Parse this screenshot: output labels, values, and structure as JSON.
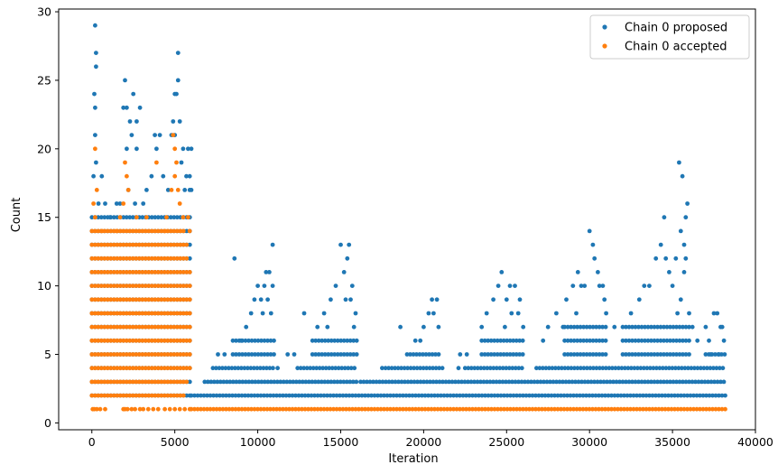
{
  "chart_data": {
    "type": "scatter",
    "xlabel": "Iteration",
    "ylabel": "Count",
    "xlim": [
      -2000,
      40000
    ],
    "ylim": [
      -0.5,
      30.2
    ],
    "xticks": [
      0,
      5000,
      10000,
      15000,
      20000,
      25000,
      30000,
      35000,
      40000
    ],
    "yticks": [
      0,
      5,
      10,
      15,
      20,
      25,
      30
    ],
    "grid": false,
    "legend": {
      "placement": "top-right"
    },
    "series": [
      {
        "name": "Chain 0 proposed",
        "color": "#1f77b4",
        "bands": [
          {
            "x0": 0,
            "x1": 6000,
            "ys": [
              2,
              3,
              4,
              5,
              6,
              7,
              8,
              9,
              10,
              11,
              12,
              13,
              14,
              15
            ]
          },
          {
            "x0": 6000,
            "x1": 38200,
            "ys": [
              2
            ]
          },
          {
            "x0": 6800,
            "x1": 16100,
            "ys": [
              3
            ]
          },
          {
            "x0": 7300,
            "x1": 11000,
            "ys": [
              4
            ]
          },
          {
            "x0": 12400,
            "x1": 16000,
            "ys": [
              4
            ]
          },
          {
            "x0": 16200,
            "x1": 38200,
            "ys": [
              3
            ]
          },
          {
            "x0": 17700,
            "x1": 21200,
            "ys": [
              4
            ]
          },
          {
            "x0": 22500,
            "x1": 26000,
            "ys": [
              4
            ]
          },
          {
            "x0": 26800,
            "x1": 38200,
            "ys": [
              4
            ]
          },
          {
            "x0": 8500,
            "x1": 11000,
            "ys": [
              5,
              6
            ]
          },
          {
            "x0": 13300,
            "x1": 16000,
            "ys": [
              5,
              6
            ]
          },
          {
            "x0": 19000,
            "x1": 21000,
            "ys": [
              5
            ]
          },
          {
            "x0": 23500,
            "x1": 26000,
            "ys": [
              5,
              6
            ]
          },
          {
            "x0": 28500,
            "x1": 31000,
            "ys": [
              5,
              6,
              7
            ]
          },
          {
            "x0": 32000,
            "x1": 36000,
            "ys": [
              5,
              6,
              7
            ]
          },
          {
            "x0": 37000,
            "x1": 38200,
            "ys": [
              5
            ]
          }
        ],
        "points": [
          [
            200,
            29
          ],
          [
            250,
            27
          ],
          [
            250,
            26
          ],
          [
            150,
            24
          ],
          [
            200,
            23
          ],
          [
            200,
            21
          ],
          [
            250,
            19
          ],
          [
            100,
            18
          ],
          [
            600,
            18
          ],
          [
            400,
            16
          ],
          [
            800,
            16
          ],
          [
            2000,
            25
          ],
          [
            1900,
            23
          ],
          [
            2100,
            23
          ],
          [
            2500,
            24
          ],
          [
            2700,
            22
          ],
          [
            2900,
            23
          ],
          [
            2300,
            22
          ],
          [
            2400,
            21
          ],
          [
            2100,
            20
          ],
          [
            2700,
            20
          ],
          [
            3800,
            21
          ],
          [
            4100,
            21
          ],
          [
            3900,
            20
          ],
          [
            4300,
            18
          ],
          [
            3600,
            18
          ],
          [
            4800,
            21
          ],
          [
            5000,
            21
          ],
          [
            5100,
            24
          ],
          [
            5200,
            25
          ],
          [
            5200,
            27
          ],
          [
            5000,
            24
          ],
          [
            5300,
            22
          ],
          [
            4900,
            22
          ],
          [
            5500,
            20
          ],
          [
            5800,
            20
          ],
          [
            6000,
            20
          ],
          [
            5400,
            19
          ],
          [
            5700,
            18
          ],
          [
            5900,
            18
          ],
          [
            5600,
            17
          ],
          [
            1700,
            16
          ],
          [
            3100,
            16
          ],
          [
            3300,
            17
          ],
          [
            2200,
            17
          ],
          [
            2600,
            16
          ],
          [
            4600,
            17
          ],
          [
            5900,
            17
          ],
          [
            6000,
            17
          ],
          [
            1100,
            15
          ],
          [
            1500,
            16
          ],
          [
            8600,
            12
          ],
          [
            9300,
            7
          ],
          [
            9600,
            8
          ],
          [
            9800,
            9
          ],
          [
            10000,
            10
          ],
          [
            10200,
            9
          ],
          [
            10400,
            10
          ],
          [
            10500,
            11
          ],
          [
            10700,
            11
          ],
          [
            10900,
            13
          ],
          [
            10300,
            8
          ],
          [
            10600,
            9
          ],
          [
            10800,
            8
          ],
          [
            10900,
            10
          ],
          [
            9000,
            6
          ],
          [
            7600,
            5
          ],
          [
            8000,
            5
          ],
          [
            11200,
            4
          ],
          [
            12800,
            8
          ],
          [
            13600,
            7
          ],
          [
            14000,
            8
          ],
          [
            14400,
            9
          ],
          [
            14700,
            10
          ],
          [
            15000,
            13
          ],
          [
            15200,
            11
          ],
          [
            15400,
            12
          ],
          [
            15500,
            13
          ],
          [
            15700,
            10
          ],
          [
            15300,
            9
          ],
          [
            15600,
            9
          ],
          [
            15900,
            8
          ],
          [
            15800,
            7
          ],
          [
            14200,
            7
          ],
          [
            12200,
            5
          ],
          [
            11800,
            5
          ],
          [
            18600,
            7
          ],
          [
            19500,
            6
          ],
          [
            20000,
            7
          ],
          [
            20300,
            8
          ],
          [
            20500,
            9
          ],
          [
            20800,
            9
          ],
          [
            20600,
            8
          ],
          [
            20900,
            7
          ],
          [
            19800,
            6
          ],
          [
            17500,
            4
          ],
          [
            23500,
            7
          ],
          [
            23800,
            8
          ],
          [
            24200,
            9
          ],
          [
            24500,
            10
          ],
          [
            24700,
            11
          ],
          [
            25000,
            9
          ],
          [
            25200,
            10
          ],
          [
            25500,
            10
          ],
          [
            25800,
            9
          ],
          [
            25700,
            8
          ],
          [
            25300,
            8
          ],
          [
            24900,
            7
          ],
          [
            26000,
            7
          ],
          [
            22100,
            4
          ],
          [
            22600,
            5
          ],
          [
            22200,
            5
          ],
          [
            27500,
            7
          ],
          [
            28000,
            8
          ],
          [
            28600,
            9
          ],
          [
            29000,
            10
          ],
          [
            29300,
            11
          ],
          [
            29500,
            10
          ],
          [
            29700,
            10
          ],
          [
            30000,
            14
          ],
          [
            30200,
            13
          ],
          [
            30300,
            12
          ],
          [
            30500,
            11
          ],
          [
            30600,
            10
          ],
          [
            30800,
            10
          ],
          [
            30900,
            9
          ],
          [
            31000,
            8
          ],
          [
            29200,
            8
          ],
          [
            28400,
            7
          ],
          [
            27200,
            6
          ],
          [
            31500,
            7
          ],
          [
            32500,
            8
          ],
          [
            33000,
            9
          ],
          [
            33300,
            10
          ],
          [
            33600,
            10
          ],
          [
            34000,
            12
          ],
          [
            34300,
            13
          ],
          [
            34500,
            15
          ],
          [
            34600,
            12
          ],
          [
            34800,
            11
          ],
          [
            35000,
            10
          ],
          [
            35200,
            12
          ],
          [
            35400,
            19
          ],
          [
            35500,
            14
          ],
          [
            35600,
            18
          ],
          [
            35700,
            13
          ],
          [
            35800,
            15
          ],
          [
            35900,
            16
          ],
          [
            35800,
            12
          ],
          [
            35700,
            11
          ],
          [
            35500,
            9
          ],
          [
            35300,
            8
          ],
          [
            36000,
            8
          ],
          [
            36200,
            7
          ],
          [
            36500,
            6
          ],
          [
            37000,
            7
          ],
          [
            37200,
            6
          ],
          [
            37500,
            8
          ],
          [
            37700,
            8
          ],
          [
            37900,
            7
          ],
          [
            38000,
            7
          ],
          [
            38100,
            6
          ],
          [
            37300,
            5
          ],
          [
            37800,
            5
          ]
        ]
      },
      {
        "name": "Chain 0 accepted",
        "color": "#ff7f0e",
        "bands": [
          {
            "x0": 0,
            "x1": 6000,
            "ys": [
              4,
              5,
              6,
              7,
              8,
              9,
              10,
              11
            ]
          },
          {
            "x0": 0,
            "x1": 5800,
            "ys": [
              3,
              12,
              13
            ]
          },
          {
            "x0": 0,
            "x1": 5600,
            "ys": [
              2,
              14
            ]
          },
          {
            "x0": 6000,
            "x1": 38200,
            "ys": [
              1
            ]
          }
        ],
        "points": [
          [
            50,
            1
          ],
          [
            150,
            1
          ],
          [
            300,
            1
          ],
          [
            500,
            1
          ],
          [
            800,
            1
          ],
          [
            1900,
            1
          ],
          [
            2000,
            1
          ],
          [
            2150,
            1
          ],
          [
            2400,
            1
          ],
          [
            2600,
            1
          ],
          [
            2900,
            1
          ],
          [
            3100,
            1
          ],
          [
            3400,
            1
          ],
          [
            3700,
            1
          ],
          [
            4000,
            1
          ],
          [
            4400,
            1
          ],
          [
            4700,
            1
          ],
          [
            5000,
            1
          ],
          [
            5300,
            1
          ],
          [
            5600,
            1
          ],
          [
            5900,
            1
          ],
          [
            200,
            20
          ],
          [
            300,
            17
          ],
          [
            100,
            16
          ],
          [
            200,
            15
          ],
          [
            2000,
            19
          ],
          [
            2100,
            18
          ],
          [
            1900,
            16
          ],
          [
            2200,
            17
          ],
          [
            3900,
            19
          ],
          [
            4900,
            21
          ],
          [
            5000,
            20
          ],
          [
            5100,
            19
          ],
          [
            5000,
            18
          ],
          [
            4800,
            17
          ],
          [
            5200,
            17
          ],
          [
            1700,
            15
          ],
          [
            2700,
            15
          ],
          [
            3300,
            15
          ],
          [
            4500,
            15
          ],
          [
            5300,
            16
          ],
          [
            5500,
            15
          ],
          [
            5800,
            15
          ],
          [
            600,
            14
          ],
          [
            1500,
            14
          ],
          [
            4400,
            14
          ],
          [
            5900,
            14
          ]
        ]
      }
    ]
  }
}
